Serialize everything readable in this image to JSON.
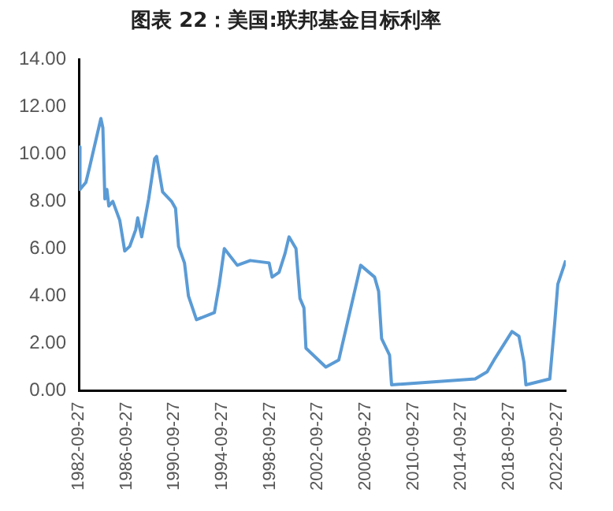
{
  "chart_data": {
    "type": "line",
    "title": "图表 22：美国:联邦基金目标利率",
    "x": [
      "1982-09-27",
      "1982-11",
      "1983-05",
      "1983-09",
      "1984-08",
      "1984-10",
      "1984-12",
      "1985-02",
      "1985-04",
      "1985-08",
      "1986-03",
      "1986-08",
      "1987-01",
      "1987-07",
      "1987-09",
      "1988-01",
      "1988-08",
      "1989-02",
      "1989-04",
      "1989-10",
      "1990-07",
      "1990-11",
      "1991-02",
      "1991-08",
      "1991-12",
      "1992-08",
      "1994-02",
      "1994-07",
      "1994-12",
      "1996-01",
      "1997-02",
      "1998-09",
      "1998-12",
      "1999-07",
      "2000-01",
      "2000-05",
      "2000-12",
      "2001-04",
      "2001-08",
      "2001-10",
      "2003-06",
      "2004-07",
      "2006-05",
      "2007-07",
      "2007-11",
      "2008-02",
      "2008-10",
      "2008-12",
      "2015-12",
      "2016-12",
      "2017-07",
      "2019-01",
      "2019-08",
      "2020-01",
      "2020-03",
      "2022-03",
      "2022-08",
      "2022-11",
      "2023-07"
    ],
    "series": [
      {
        "color": "#5b9bd5",
        "values": [
          10.3,
          8.5,
          8.8,
          9.5,
          11.5,
          11.1,
          8.1,
          8.5,
          7.8,
          8.0,
          7.2,
          5.9,
          6.1,
          6.8,
          7.3,
          6.5,
          8.1,
          9.8,
          9.9,
          8.4,
          8.0,
          7.7,
          6.1,
          5.4,
          4.0,
          3.0,
          3.3,
          4.5,
          6.0,
          5.3,
          5.5,
          5.4,
          4.8,
          5.0,
          5.8,
          6.5,
          6.0,
          3.9,
          3.5,
          1.8,
          1.0,
          1.3,
          5.3,
          4.8,
          4.2,
          2.2,
          1.5,
          0.25,
          0.5,
          0.8,
          1.3,
          2.5,
          2.3,
          1.2,
          0.25,
          0.5,
          2.9,
          4.5,
          5.5
        ]
      }
    ],
    "xlim": [
      "1982-09-27",
      "2023-07"
    ],
    "xticks": [
      "1982-09-27",
      "1986-09-27",
      "1990-09-27",
      "1994-09-27",
      "1998-09-27",
      "2002-09-27",
      "2006-09-27",
      "2010-09-27",
      "2014-09-27",
      "2018-09-27",
      "2022-09-27"
    ],
    "ylim": [
      0,
      14
    ],
    "yticks": [
      {
        "value": 0,
        "label": "0.00"
      },
      {
        "value": 2,
        "label": "2.00"
      },
      {
        "value": 4,
        "label": "4.00"
      },
      {
        "value": 6,
        "label": "6.00"
      },
      {
        "value": 8,
        "label": "8.00"
      },
      {
        "value": 10,
        "label": "10.00"
      },
      {
        "value": 12,
        "label": "12.00"
      },
      {
        "value": 14,
        "label": "14.00"
      }
    ],
    "grid": false,
    "legend": false,
    "marker": "none",
    "line_style": "solid"
  }
}
